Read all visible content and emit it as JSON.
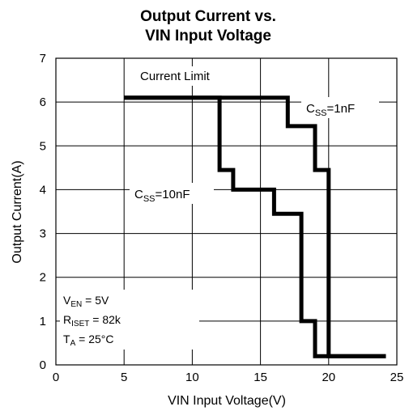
{
  "chart_data": {
    "type": "line",
    "title_lines": [
      "Output Current vs.",
      "VIN Input Voltage"
    ],
    "xlabel": "VIN Input Voltage(V)",
    "ylabel": "Output Current(A)",
    "xlim": [
      0,
      25
    ],
    "ylim": [
      0,
      7
    ],
    "xticks": [
      0,
      5,
      10,
      15,
      20,
      25
    ],
    "yticks": [
      0,
      1,
      2,
      3,
      4,
      5,
      6,
      7
    ],
    "grid": true,
    "series": [
      {
        "label_main": "C",
        "label_sub": "SS",
        "label_rest": "=1nF",
        "x": [
          5,
          17,
          17,
          19,
          19,
          20,
          20,
          24.2
        ],
        "y": [
          6.1,
          6.1,
          5.45,
          5.45,
          4.45,
          4.45,
          0.2,
          0.2
        ]
      },
      {
        "label_main": "C",
        "label_sub": "SS",
        "label_rest": "=10nF",
        "x": [
          5,
          12,
          12,
          13,
          13,
          16,
          16,
          18,
          18,
          19,
          19,
          24.2
        ],
        "y": [
          6.1,
          6.1,
          4.45,
          4.45,
          4.0,
          4.0,
          3.45,
          3.45,
          1.0,
          1.0,
          0.2,
          0.2
        ]
      }
    ],
    "annotations": {
      "current_limit": "Current Limit",
      "conditions": [
        {
          "main": "V",
          "sub": "EN",
          "rest": " = 5V"
        },
        {
          "main": "R",
          "sub": "ISET",
          "rest": " = 82k"
        },
        {
          "main": "T",
          "sub": "A",
          "rest": " = 25°C"
        }
      ]
    }
  }
}
